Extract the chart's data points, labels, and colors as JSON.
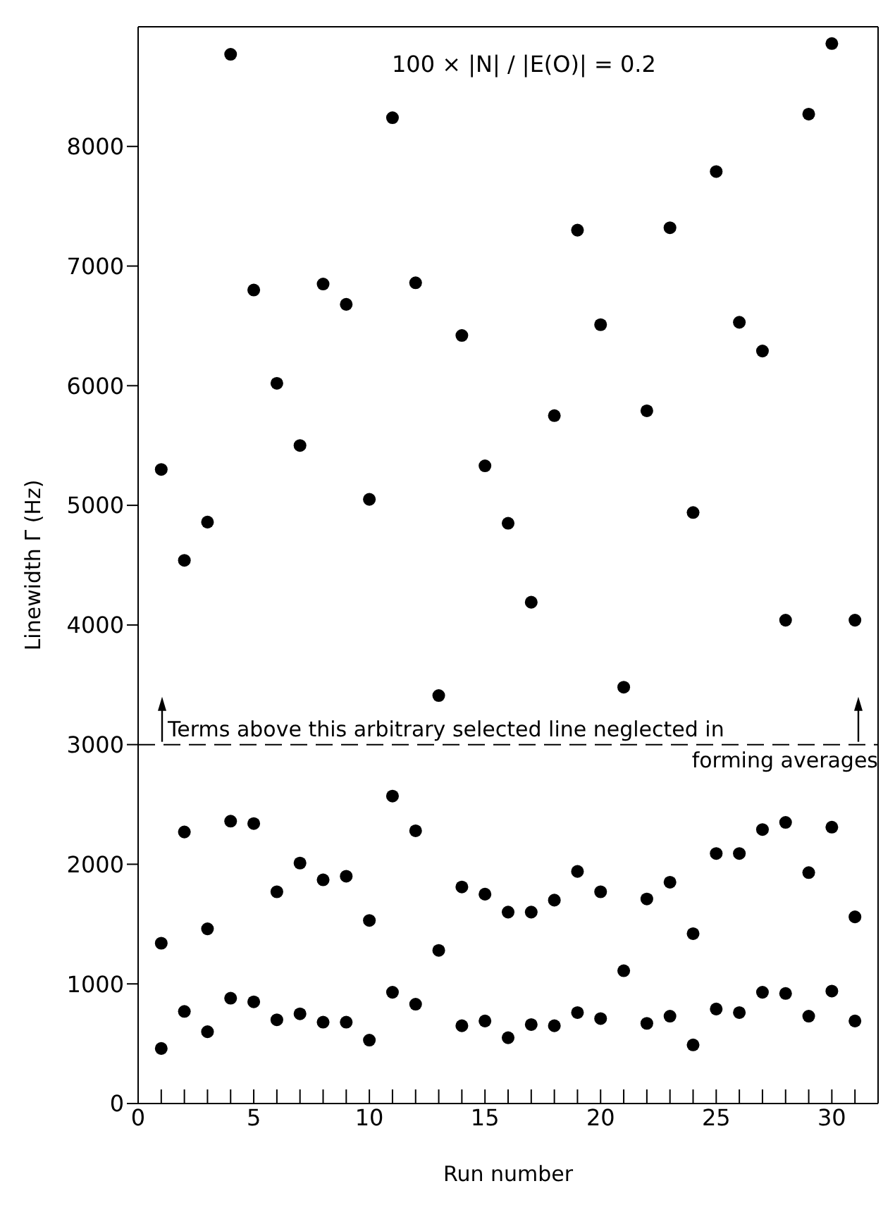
{
  "chart_data": {
    "type": "scatter",
    "xlabel": "Run number",
    "ylabel": "Linewidth Γ (Hz)",
    "annotations": [
      "100 × |N| / |E(O)| = 0.2"
    ],
    "x": [
      1,
      2,
      3,
      4,
      5,
      6,
      7,
      8,
      9,
      10,
      11,
      12,
      13,
      14,
      15,
      16,
      17,
      18,
      19,
      20,
      21,
      22,
      23,
      24,
      25,
      26,
      27,
      28,
      29,
      30,
      31
    ],
    "series": [
      {
        "color": "#000000",
        "values": [
          460,
          770,
          600,
          880,
          850,
          700,
          750,
          680,
          680,
          530,
          930,
          830,
          null,
          650,
          690,
          550,
          660,
          650,
          760,
          710,
          null,
          670,
          730,
          490,
          790,
          760,
          930,
          920,
          730,
          940,
          690
        ]
      },
      {
        "color": "#000000",
        "values": [
          1340,
          2270,
          1460,
          2360,
          2340,
          1770,
          2010,
          1870,
          1900,
          1530,
          2570,
          2280,
          1280,
          1810,
          1750,
          1600,
          1600,
          1700,
          1940,
          1770,
          1110,
          1710,
          1850,
          1420,
          2090,
          2090,
          2290,
          2350,
          1930,
          2310,
          1560
        ]
      },
      {
        "color": "#000000",
        "values": [
          5300,
          4540,
          4860,
          8770,
          6800,
          6020,
          5500,
          6850,
          6680,
          5050,
          8240,
          6860,
          3410,
          6420,
          5330,
          4850,
          4190,
          5750,
          7300,
          6510,
          3480,
          5790,
          7320,
          4940,
          7790,
          6530,
          6290,
          4040,
          8270,
          8860,
          4040
        ]
      }
    ],
    "xlim": [
      0,
      32
    ],
    "xticks": [
      0,
      {
        "value": 1,
        "label": null
      },
      {
        "value": 2,
        "label": null
      },
      {
        "value": 3,
        "label": null
      },
      {
        "value": 4,
        "label": null
      },
      5,
      {
        "value": 6,
        "label": null
      },
      {
        "value": 7,
        "label": null
      },
      {
        "value": 8,
        "label": null
      },
      {
        "value": 9,
        "label": null
      },
      10,
      {
        "value": 11,
        "label": null
      },
      {
        "value": 12,
        "label": null
      },
      {
        "value": 13,
        "label": null
      },
      {
        "value": 14,
        "label": null
      },
      15,
      {
        "value": 16,
        "label": null
      },
      {
        "value": 17,
        "label": null
      },
      {
        "value": 18,
        "label": null
      },
      {
        "value": 19,
        "label": null
      },
      20,
      {
        "value": 21,
        "label": null
      },
      {
        "value": 22,
        "label": null
      },
      {
        "value": 23,
        "label": null
      },
      {
        "value": 24,
        "label": null
      },
      25,
      {
        "value": 26,
        "label": null
      },
      {
        "value": 27,
        "label": null
      },
      {
        "value": 28,
        "label": null
      },
      {
        "value": 29,
        "label": null
      },
      30,
      {
        "value": 31,
        "label": null
      }
    ],
    "ylim": [
      0,
      9000
    ],
    "yticks": [
      0,
      1000,
      2000,
      3000,
      4000,
      5000,
      6000,
      7000,
      8000
    ],
    "ref_lines": [
      {
        "axis": "y",
        "value": 3000,
        "label": "Terms above this arbitrary selected line neglected in forming averages",
        "color": "#000000",
        "line_style": "dashed"
      }
    ],
    "grid": false,
    "legend": false,
    "marker": "circle"
  }
}
